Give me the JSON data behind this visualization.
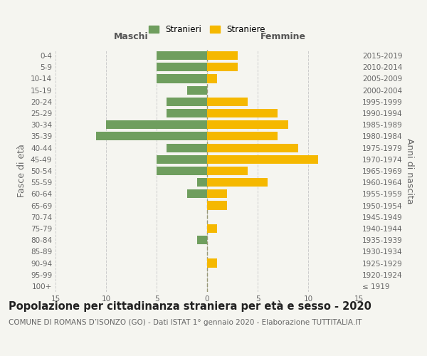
{
  "age_groups": [
    "100+",
    "95-99",
    "90-94",
    "85-89",
    "80-84",
    "75-79",
    "70-74",
    "65-69",
    "60-64",
    "55-59",
    "50-54",
    "45-49",
    "40-44",
    "35-39",
    "30-34",
    "25-29",
    "20-24",
    "15-19",
    "10-14",
    "5-9",
    "0-4"
  ],
  "birth_years": [
    "≤ 1919",
    "1920-1924",
    "1925-1929",
    "1930-1934",
    "1935-1939",
    "1940-1944",
    "1945-1949",
    "1950-1954",
    "1955-1959",
    "1960-1964",
    "1965-1969",
    "1970-1974",
    "1975-1979",
    "1980-1984",
    "1985-1989",
    "1990-1994",
    "1995-1999",
    "2000-2004",
    "2005-2009",
    "2010-2014",
    "2015-2019"
  ],
  "males": [
    0,
    0,
    0,
    0,
    1,
    0,
    0,
    0,
    2,
    1,
    5,
    5,
    4,
    11,
    10,
    4,
    4,
    2,
    5,
    5,
    5
  ],
  "females": [
    0,
    0,
    1,
    0,
    0,
    1,
    0,
    2,
    2,
    6,
    4,
    11,
    9,
    7,
    8,
    7,
    4,
    0,
    1,
    3,
    3
  ],
  "male_color": "#6f9e5e",
  "female_color": "#f5b800",
  "bar_height": 0.75,
  "xlim": 15,
  "title": "Popolazione per cittadinanza straniera per età e sesso - 2020",
  "subtitle": "COMUNE DI ROMANS D’ISONZO (GO) - Dati ISTAT 1° gennaio 2020 - Elaborazione TUTTITALIA.IT",
  "ylabel_left": "Fasce di età",
  "ylabel_right": "Anni di nascita",
  "xlabel_males": "Maschi",
  "xlabel_females": "Femmine",
  "legend_males": "Stranieri",
  "legend_females": "Straniere",
  "bg_color": "#f5f5f0",
  "grid_color": "#cccccc",
  "title_fontsize": 10.5,
  "subtitle_fontsize": 7.5,
  "tick_fontsize": 7.5,
  "label_fontsize": 9
}
